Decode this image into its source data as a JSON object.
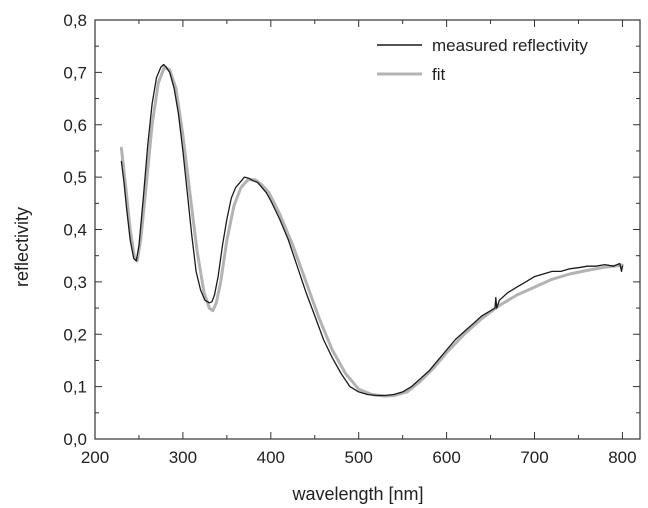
{
  "chart_data": {
    "type": "line",
    "title": "",
    "xlabel": "wavelength [nm]",
    "ylabel": "reflectivity",
    "xlim": [
      200,
      820
    ],
    "ylim": [
      0.0,
      0.8
    ],
    "x_ticks": [
      200,
      300,
      400,
      500,
      600,
      700,
      800
    ],
    "y_ticks": [
      0.0,
      0.1,
      0.2,
      0.3,
      0.4,
      0.5,
      0.6,
      0.7,
      0.8
    ],
    "x_tick_labels": [
      "200",
      "300",
      "400",
      "500",
      "600",
      "700",
      "800"
    ],
    "y_tick_labels": [
      "0,0",
      "0,1",
      "0,2",
      "0,3",
      "0,4",
      "0,5",
      "0,6",
      "0,7",
      "0,8"
    ],
    "grid": false,
    "legend_position": "top-right",
    "series": [
      {
        "name": "measured reflectivity",
        "color": "#1a1a1a",
        "x": [
          230,
          233,
          236,
          240,
          244,
          247,
          250,
          255,
          260,
          265,
          270,
          275,
          278,
          281,
          285,
          290,
          295,
          300,
          305,
          310,
          315,
          320,
          325,
          330,
          333,
          336,
          340,
          345,
          350,
          355,
          360,
          365,
          370,
          375,
          380,
          385,
          390,
          395,
          400,
          410,
          420,
          430,
          440,
          450,
          460,
          470,
          480,
          490,
          500,
          510,
          520,
          530,
          540,
          550,
          560,
          570,
          580,
          590,
          600,
          610,
          620,
          630,
          640,
          650,
          655,
          656,
          657,
          660,
          670,
          680,
          690,
          700,
          710,
          720,
          730,
          740,
          750,
          760,
          770,
          780,
          790,
          797,
          799,
          800
        ],
        "y": [
          0.53,
          0.49,
          0.44,
          0.38,
          0.345,
          0.34,
          0.37,
          0.46,
          0.56,
          0.64,
          0.69,
          0.71,
          0.715,
          0.71,
          0.7,
          0.67,
          0.62,
          0.55,
          0.47,
          0.39,
          0.32,
          0.285,
          0.265,
          0.26,
          0.262,
          0.275,
          0.31,
          0.37,
          0.42,
          0.46,
          0.48,
          0.49,
          0.5,
          0.498,
          0.493,
          0.49,
          0.48,
          0.47,
          0.455,
          0.42,
          0.38,
          0.33,
          0.28,
          0.235,
          0.19,
          0.155,
          0.125,
          0.1,
          0.09,
          0.085,
          0.083,
          0.083,
          0.085,
          0.09,
          0.1,
          0.115,
          0.13,
          0.15,
          0.17,
          0.19,
          0.205,
          0.22,
          0.235,
          0.245,
          0.25,
          0.27,
          0.25,
          0.265,
          0.28,
          0.29,
          0.3,
          0.31,
          0.315,
          0.32,
          0.32,
          0.325,
          0.327,
          0.33,
          0.33,
          0.333,
          0.33,
          0.335,
          0.32,
          0.33
        ]
      },
      {
        "name": "fit",
        "color": "#b3b3b3",
        "x": [
          230,
          235,
          240,
          245,
          248,
          252,
          258,
          265,
          272,
          279,
          285,
          292,
          300,
          308,
          316,
          324,
          330,
          334,
          338,
          343,
          350,
          358,
          366,
          374,
          382,
          390,
          398,
          410,
          425,
          440,
          455,
          470,
          485,
          500,
          515,
          530,
          540,
          555,
          570,
          585,
          600,
          620,
          640,
          660,
          680,
          700,
          720,
          740,
          760,
          780,
          800
        ],
        "y": [
          0.555,
          0.48,
          0.4,
          0.345,
          0.34,
          0.38,
          0.48,
          0.6,
          0.68,
          0.71,
          0.705,
          0.67,
          0.58,
          0.47,
          0.36,
          0.28,
          0.25,
          0.245,
          0.26,
          0.3,
          0.38,
          0.445,
          0.48,
          0.495,
          0.495,
          0.485,
          0.47,
          0.43,
          0.37,
          0.3,
          0.23,
          0.17,
          0.125,
          0.095,
          0.085,
          0.082,
          0.083,
          0.09,
          0.11,
          0.135,
          0.165,
          0.2,
          0.23,
          0.255,
          0.275,
          0.29,
          0.305,
          0.315,
          0.322,
          0.328,
          0.332
        ]
      }
    ]
  }
}
